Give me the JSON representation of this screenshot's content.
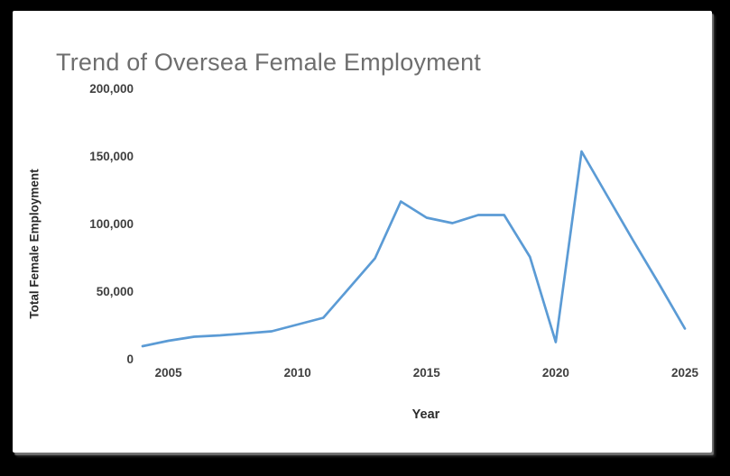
{
  "chart_data": {
    "type": "line",
    "title": "Trend of Oversea Female Employment",
    "xlabel": "Year",
    "ylabel": "Total Female Employment",
    "x": [
      2004,
      2005,
      2006,
      2007,
      2008,
      2009,
      2010,
      2011,
      2012,
      2013,
      2014,
      2015,
      2016,
      2017,
      2018,
      2019,
      2020,
      2021,
      2022,
      2023,
      2024,
      2025
    ],
    "series": [
      {
        "name": "Total Female Employment",
        "values": [
          10000,
          14000,
          17000,
          18000,
          19500,
          21000,
          26000,
          31000,
          53000,
          75000,
          117000,
          105000,
          101000,
          107000,
          107000,
          76000,
          13000,
          154000,
          121000,
          88000,
          56000,
          23000
        ]
      }
    ],
    "xlim": [
      2004,
      2025
    ],
    "ylim": [
      0,
      200000
    ],
    "x_ticks": [
      2005,
      2010,
      2015,
      2020,
      2025
    ],
    "x_tick_labels": [
      "2005",
      "2010",
      "2015",
      "2020",
      "2025"
    ],
    "y_ticks": [
      0,
      50000,
      100000,
      150000,
      200000
    ],
    "y_tick_labels": [
      "0",
      "50,000",
      "100,000",
      "150,000",
      "200,000"
    ],
    "grid": false,
    "legend": "none",
    "line_color": "#5B9BD5"
  },
  "colors": {
    "background": "#000000",
    "card": "#ffffff",
    "title_text": "#6e6e6e",
    "axis_title_text": "#2b2b2b",
    "tick_text": "#3f3f3f",
    "line": "#5B9BD5"
  }
}
